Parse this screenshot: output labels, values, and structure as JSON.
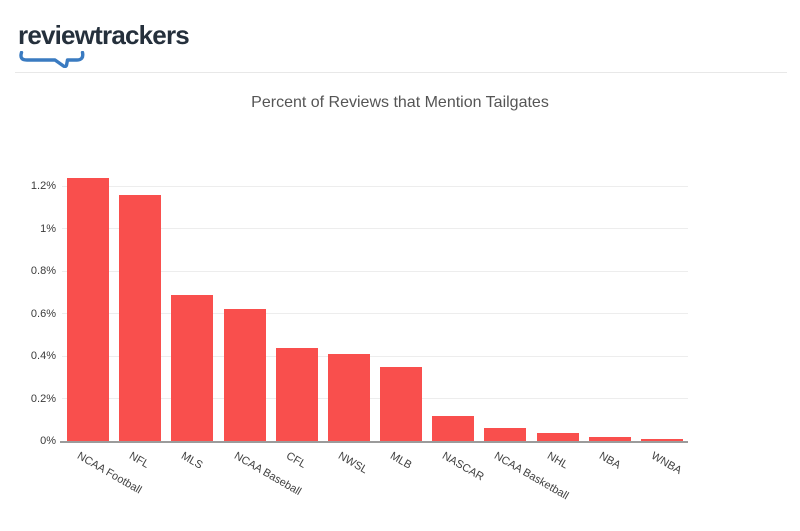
{
  "brand": {
    "logo_text": "reviewtrackers",
    "logo_text_color": "#25303c",
    "swoosh_color": "#3a7bc1"
  },
  "chart_data": {
    "type": "bar",
    "title": "Percent of Reviews that Mention Tailgates",
    "xlabel": "",
    "ylabel": "",
    "unit": "%",
    "categories": [
      "NCAA Football",
      "NFL",
      "MLS",
      "NCAA Baseball",
      "CFL",
      "NWSL",
      "MLB",
      "NASCAR",
      "NCAA Basketball",
      "NHL",
      "NBA",
      "WNBA"
    ],
    "values": [
      1.24,
      1.16,
      0.69,
      0.62,
      0.44,
      0.41,
      0.35,
      0.12,
      0.06,
      0.04,
      0.02,
      0.01
    ],
    "ylim": [
      0,
      1.3
    ],
    "ytick_step": 0.2,
    "ytick_labels": [
      "0%",
      "0.2%",
      "0.4%",
      "0.6%",
      "0.8%",
      "1%",
      "1.2%"
    ],
    "grid": true,
    "legend": "none",
    "bar_color": "#f94f4d",
    "gridline_color": "#ededed",
    "axis_line_color": "#9b9b9b"
  }
}
